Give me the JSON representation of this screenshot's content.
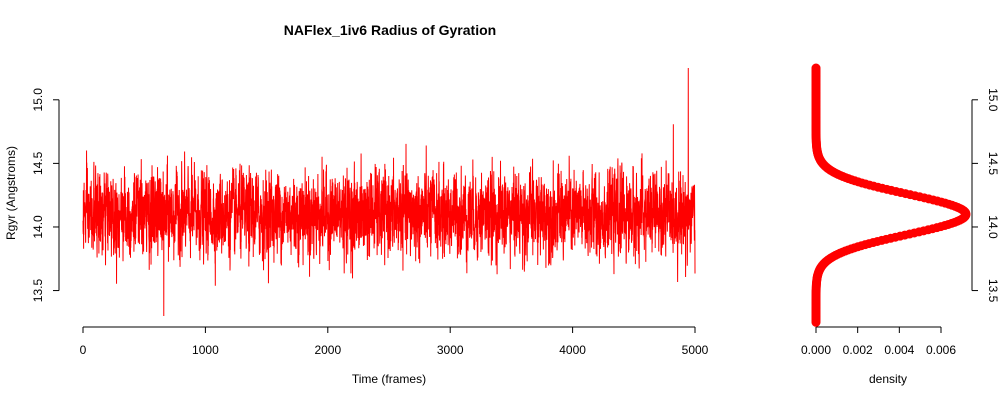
{
  "chart_data": [
    {
      "type": "line",
      "title": "NAFlex_1iv6 Radius of Gyration",
      "xlabel": "Time (frames)",
      "ylabel": "Rgyr (Angstroms)",
      "xlim": [
        0,
        5000
      ],
      "ylim": [
        13.3,
        15.25
      ],
      "x_ticks": [
        0,
        1000,
        2000,
        3000,
        4000,
        5000
      ],
      "y_ticks": [
        13.5,
        14.0,
        14.5,
        15.0
      ],
      "x_tick_labels": [
        "0",
        "1000",
        "2000",
        "3000",
        "4000",
        "5000"
      ],
      "y_tick_labels": [
        "13.5",
        "14.0",
        "14.5",
        "15.0"
      ],
      "grid": false,
      "series": [
        {
          "color": "#ff0000",
          "n_frames": 5000,
          "mean": 14.1,
          "sd": 0.16,
          "min": 13.3,
          "max": 15.25,
          "x_range": [
            0,
            5000
          ]
        }
      ]
    },
    {
      "type": "line",
      "title": "",
      "xlabel": "density",
      "ylabel": "",
      "xlim": [
        0,
        0.0072
      ],
      "ylim": [
        13.3,
        15.25
      ],
      "x_ticks": [
        0,
        0.002,
        0.004,
        0.006
      ],
      "x_tick_labels": [
        "0.000",
        "0.002",
        "0.004",
        "0.006"
      ],
      "y_ticks": [
        13.5,
        14.0,
        14.5,
        15.0
      ],
      "y_tick_labels": [
        "13.5",
        "14.0",
        "14.5",
        "15.0"
      ],
      "y_axis_side": "right",
      "grid": false,
      "series": [
        {
          "color": "#ff0000",
          "marker": "circle",
          "peak_density": 0.0072,
          "peak_y": 14.1,
          "sd": 0.16,
          "y_range": [
            13.25,
            15.25
          ]
        }
      ]
    }
  ]
}
